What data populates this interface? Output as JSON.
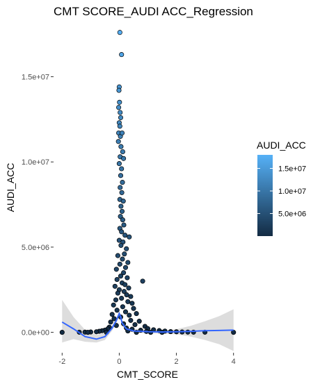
{
  "chart_data": {
    "type": "scatter",
    "title": "CMT SCORE_AUDI ACC_Regression",
    "xlabel": "CMT_SCORE",
    "ylabel": "AUDI_ACC",
    "xlim": [
      -2.3,
      4.3
    ],
    "ylim": [
      -1200000,
      18200000
    ],
    "grid": false,
    "x_ticks": [
      -2,
      0,
      2,
      4
    ],
    "x_tick_labels": [
      "-2",
      "0",
      "2",
      "4"
    ],
    "y_ticks": [
      0,
      5000000,
      10000000,
      15000000
    ],
    "y_tick_labels": [
      "0.0e+00",
      "5.0e+06",
      "1.0e+07",
      "1.5e+07"
    ],
    "legend": {
      "title": "AUDI_ACC",
      "position": "right",
      "ticks": [
        5000000,
        10000000,
        15000000
      ],
      "labels": [
        "5.0e+06",
        "1.0e+07",
        "1.5e+07"
      ],
      "range": [
        0,
        18000000
      ],
      "color_low": "#132B43",
      "color_high": "#56B1F7"
    },
    "points": [
      {
        "x": 0.02,
        "y": 17600000
      },
      {
        "x": 0.08,
        "y": 16300000
      },
      {
        "x": 0.0,
        "y": 14400000
      },
      {
        "x": -0.01,
        "y": 14200000
      },
      {
        "x": 0.01,
        "y": 13500000
      },
      {
        "x": -0.02,
        "y": 13200000
      },
      {
        "x": 0.03,
        "y": 12900000
      },
      {
        "x": 0.05,
        "y": 12600000
      },
      {
        "x": 0.0,
        "y": 12300000
      },
      {
        "x": 0.02,
        "y": 12100000
      },
      {
        "x": -0.02,
        "y": 11700000
      },
      {
        "x": 0.04,
        "y": 11500000
      },
      {
        "x": 0.1,
        "y": 11700000
      },
      {
        "x": -0.03,
        "y": 11200000
      },
      {
        "x": 0.06,
        "y": 10900000
      },
      {
        "x": 0.12,
        "y": 10600000
      },
      {
        "x": 0.03,
        "y": 10300000
      },
      {
        "x": 0.15,
        "y": 10200000
      },
      {
        "x": 0.0,
        "y": 9900000
      },
      {
        "x": 0.08,
        "y": 9600000
      },
      {
        "x": 0.05,
        "y": 9200000
      },
      {
        "x": 0.11,
        "y": 8800000
      },
      {
        "x": 0.03,
        "y": 8500000
      },
      {
        "x": 0.09,
        "y": 8200000
      },
      {
        "x": 0.02,
        "y": 7800000
      },
      {
        "x": 0.14,
        "y": 7700000
      },
      {
        "x": 0.06,
        "y": 7400000
      },
      {
        "x": 0.1,
        "y": 7100000
      },
      {
        "x": 0.04,
        "y": 6800000
      },
      {
        "x": 0.12,
        "y": 6600000
      },
      {
        "x": 0.16,
        "y": 6300000
      },
      {
        "x": 0.02,
        "y": 6100000
      },
      {
        "x": 0.08,
        "y": 5900000
      },
      {
        "x": 0.2,
        "y": 5700000
      },
      {
        "x": 0.35,
        "y": 5600000
      },
      {
        "x": 0.0,
        "y": 5400000
      },
      {
        "x": 0.13,
        "y": 5300000
      },
      {
        "x": 0.06,
        "y": 5100000
      },
      {
        "x": 0.25,
        "y": 4900000
      },
      {
        "x": 0.18,
        "y": 4600000
      },
      {
        "x": -0.05,
        "y": 4500000
      },
      {
        "x": 0.11,
        "y": 4300000
      },
      {
        "x": 0.3,
        "y": 4100000
      },
      {
        "x": 0.02,
        "y": 4000000
      },
      {
        "x": 0.22,
        "y": 3800000
      },
      {
        "x": -0.1,
        "y": 3700000
      },
      {
        "x": 0.15,
        "y": 3500000
      },
      {
        "x": 0.05,
        "y": 3300000
      },
      {
        "x": 0.28,
        "y": 3200000
      },
      {
        "x": -0.08,
        "y": 3100000
      },
      {
        "x": 0.82,
        "y": 3000000
      },
      {
        "x": 0.1,
        "y": 2900000
      },
      {
        "x": 0.2,
        "y": 2800000
      },
      {
        "x": -0.15,
        "y": 2700000
      },
      {
        "x": 0.33,
        "y": 2600000
      },
      {
        "x": 0.0,
        "y": 2500000
      },
      {
        "x": 0.17,
        "y": 2400000
      },
      {
        "x": -0.05,
        "y": 2300000
      },
      {
        "x": 0.26,
        "y": 2200000
      },
      {
        "x": 0.4,
        "y": 2100000
      },
      {
        "x": 0.08,
        "y": 2000000
      },
      {
        "x": -0.12,
        "y": 1900000
      },
      {
        "x": 0.3,
        "y": 1800000
      },
      {
        "x": 0.45,
        "y": 1700000
      },
      {
        "x": -0.2,
        "y": 1600000
      },
      {
        "x": 0.12,
        "y": 1500000
      },
      {
        "x": 0.5,
        "y": 1400000
      },
      {
        "x": -0.08,
        "y": 1300000
      },
      {
        "x": 0.22,
        "y": 1200000
      },
      {
        "x": 0.6,
        "y": 1100000
      },
      {
        "x": -0.25,
        "y": 1050000
      },
      {
        "x": 0.35,
        "y": 1000000
      },
      {
        "x": 0.05,
        "y": 900000
      },
      {
        "x": -0.18,
        "y": 800000
      },
      {
        "x": 0.4,
        "y": 700000
      },
      {
        "x": 0.7,
        "y": 650000
      },
      {
        "x": -0.3,
        "y": 600000
      },
      {
        "x": 0.15,
        "y": 500000
      },
      {
        "x": 0.55,
        "y": 450000
      },
      {
        "x": -0.1,
        "y": 400000
      },
      {
        "x": 0.9,
        "y": 350000
      },
      {
        "x": -0.35,
        "y": 300000
      },
      {
        "x": 0.25,
        "y": 250000
      },
      {
        "x": 1.0,
        "y": 220000
      },
      {
        "x": -0.4,
        "y": 200000
      },
      {
        "x": 0.45,
        "y": 180000
      },
      {
        "x": 1.2,
        "y": 150000
      },
      {
        "x": -0.5,
        "y": 130000
      },
      {
        "x": 0.75,
        "y": 120000
      },
      {
        "x": 1.4,
        "y": 100000
      },
      {
        "x": -0.6,
        "y": 90000
      },
      {
        "x": 0.3,
        "y": 80000
      },
      {
        "x": 1.6,
        "y": 70000
      },
      {
        "x": -0.7,
        "y": 60000
      },
      {
        "x": 0.95,
        "y": 50000
      },
      {
        "x": 1.8,
        "y": 40000
      },
      {
        "x": -0.8,
        "y": 30000
      },
      {
        "x": 2.0,
        "y": 30000
      },
      {
        "x": 2.2,
        "y": 20000
      },
      {
        "x": -1.0,
        "y": 20000
      },
      {
        "x": 2.4,
        "y": 10000
      },
      {
        "x": -1.2,
        "y": 10000
      },
      {
        "x": 2.6,
        "y": 5000
      },
      {
        "x": -1.4,
        "y": 5000
      },
      {
        "x": 3.0,
        "y": 5000
      },
      {
        "x": -2.0,
        "y": 0
      },
      {
        "x": 4.0,
        "y": 0
      },
      {
        "x": -1.1,
        "y": 0
      },
      {
        "x": 1.1,
        "y": 0
      },
      {
        "x": 0.6,
        "y": 0
      },
      {
        "x": -0.45,
        "y": 0
      },
      {
        "x": 1.5,
        "y": 0
      }
    ],
    "smooth_line": {
      "color": "#3366FF",
      "x": [
        -2.0,
        -1.6,
        -1.2,
        -0.8,
        -0.5,
        -0.25,
        -0.1,
        0.0,
        0.05,
        0.1,
        0.25,
        0.5,
        1.0,
        1.5,
        2.0,
        2.5,
        3.0,
        3.5,
        4.0
      ],
      "y": [
        600000,
        200000,
        -250000,
        -400000,
        -250000,
        250000,
        700000,
        1100000,
        900000,
        550000,
        200000,
        80000,
        40000,
        20000,
        30000,
        60000,
        90000,
        110000,
        130000
      ]
    },
    "confidence_band": {
      "color": "#d9d9d9",
      "x": [
        -2.0,
        -1.6,
        -1.2,
        -0.8,
        -0.5,
        -0.25,
        -0.1,
        0.0,
        0.05,
        0.1,
        0.25,
        0.5,
        1.0,
        1.5,
        2.0,
        2.5,
        3.0,
        3.5,
        4.0
      ],
      "lower": [
        -600000,
        -400000,
        -550000,
        -600000,
        -450000,
        100000,
        550000,
        950000,
        750000,
        400000,
        100000,
        -20000,
        -60000,
        -80000,
        -120000,
        -250000,
        -450000,
        -700000,
        -1100000
      ],
      "upper": [
        1900000,
        900000,
        150000,
        -150000,
        -50000,
        400000,
        850000,
        1250000,
        1050000,
        700000,
        300000,
        180000,
        140000,
        120000,
        180000,
        380000,
        650000,
        950000,
        1350000
      ]
    }
  }
}
